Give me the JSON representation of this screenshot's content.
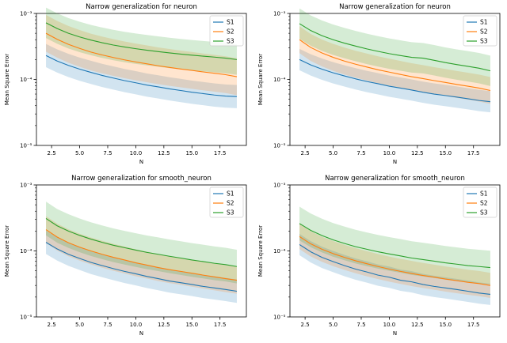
{
  "page": {
    "background": "#ffffff"
  },
  "axis": {
    "xlabel": "N",
    "ylabel": "Mean Square Error",
    "xlim": [
      1.15,
      19.85
    ],
    "ylim_log": [
      -5,
      -3
    ],
    "x_ticks": [
      2.5,
      5.0,
      7.5,
      10.0,
      12.5,
      15.0,
      17.5
    ],
    "x_tick_labels": [
      "2.5",
      "5.0",
      "7.5",
      "10.0",
      "12.5",
      "15.0",
      "17.5"
    ],
    "y_tick_exponents": [
      -5,
      -4,
      -3
    ],
    "y_tick_labels": [
      "10⁻⁵",
      "10⁻⁴",
      "10⁻³"
    ]
  },
  "legend": {
    "labels": [
      "S1",
      "S2",
      "S3"
    ]
  },
  "colors": {
    "s1": "#1f77b4",
    "s2": "#ff7f0e",
    "s3": "#2ca02c",
    "band_opacity": 0.2,
    "frame": "#000000",
    "legend_border": "#cccccc"
  },
  "chart_data": [
    {
      "type": "line",
      "title": "Narrow generalization for neuron",
      "xlabel": "N",
      "ylabel": "Mean Square Error",
      "yscale": "log",
      "ylim": [
        1e-05,
        0.001
      ],
      "x": [
        2,
        3,
        4,
        5,
        6,
        7,
        8,
        9,
        10,
        11,
        12,
        13,
        14,
        15,
        16,
        17,
        18,
        19
      ],
      "series": [
        {
          "name": "S1",
          "color": "#1f77b4",
          "band_factor": 1.5,
          "values": [
            0.00023,
            0.00019,
            0.000163,
            0.000143,
            0.000128,
            0.000115,
            0.000105,
            9.6e-05,
            8.9e-05,
            8.2e-05,
            7.7e-05,
            7.2e-05,
            6.8e-05,
            6.4e-05,
            6.1e-05,
            5.8e-05,
            5.6e-05,
            5.5e-05
          ]
        },
        {
          "name": "S2",
          "color": "#ff7f0e",
          "band_factor": 1.9,
          "values": [
            0.0005,
            0.000405,
            0.00034,
            0.000295,
            0.00026,
            0.000235,
            0.000215,
            0.000198,
            0.000184,
            0.000172,
            0.000161,
            0.000152,
            0.000144,
            0.000137,
            0.00013,
            0.000124,
            0.000118,
            0.00011
          ]
        },
        {
          "name": "S3",
          "color": "#2ca02c",
          "band_factor": 1.7,
          "values": [
            0.00072,
            0.00059,
            0.0005,
            0.00044,
            0.000395,
            0.00036,
            0.000332,
            0.00031,
            0.000292,
            0.000277,
            0.000264,
            0.000252,
            0.000242,
            0.000233,
            0.000225,
            0.000218,
            0.00021,
            0.0002
          ]
        }
      ]
    },
    {
      "type": "line",
      "title": "Narrow generalization for neuron",
      "xlabel": "N",
      "ylabel": "Mean Square Error",
      "yscale": "log",
      "ylim": [
        1e-05,
        0.001
      ],
      "x": [
        2,
        3,
        4,
        5,
        6,
        7,
        8,
        9,
        10,
        11,
        12,
        13,
        14,
        15,
        16,
        17,
        18,
        19
      ],
      "series": [
        {
          "name": "S1",
          "color": "#1f77b4",
          "band_factor": 1.45,
          "values": [
            0.0002,
            0.000166,
            0.000143,
            0.000126,
            0.000113,
            0.000102,
            9.3e-05,
            8.6e-05,
            7.9e-05,
            7.4e-05,
            6.9e-05,
            6.4e-05,
            6e-05,
            5.7e-05,
            5.4e-05,
            5.1e-05,
            4.8e-05,
            4.6e-05
          ]
        },
        {
          "name": "S2",
          "color": "#ff7f0e",
          "band_factor": 1.6,
          "values": [
            0.0004,
            0.000305,
            0.000252,
            0.000216,
            0.00019,
            0.00017,
            0.000154,
            0.00014,
            0.000129,
            0.000119,
            0.00011,
            0.000103,
            9.6e-05,
            9e-05,
            8.4e-05,
            7.9e-05,
            7.4e-05,
            6.8e-05
          ]
        },
        {
          "name": "S3",
          "color": "#2ca02c",
          "band_factor": 1.7,
          "values": [
            0.0007,
            0.00055,
            0.00046,
            0.0004,
            0.000355,
            0.00032,
            0.00029,
            0.000266,
            0.000246,
            0.00023,
            0.000216,
            0.00021,
            0.000195,
            0.00018,
            0.000168,
            0.000158,
            0.000148,
            0.000135
          ]
        }
      ]
    },
    {
      "type": "line",
      "title": "Narrow generalization for smooth_neuron",
      "xlabel": "N",
      "ylabel": "Mean Square Error",
      "yscale": "log",
      "ylim": [
        1e-05,
        0.001
      ],
      "x": [
        2,
        3,
        4,
        5,
        6,
        7,
        8,
        9,
        10,
        11,
        12,
        13,
        14,
        15,
        16,
        17,
        18,
        19
      ],
      "series": [
        {
          "name": "S1",
          "color": "#1f77b4",
          "band_factor": 1.5,
          "values": [
            0.000135,
            0.000107,
            8.9e-05,
            7.7e-05,
            6.7e-05,
            6e-05,
            5.4e-05,
            4.9e-05,
            4.5e-05,
            4.1e-05,
            3.8e-05,
            3.5e-05,
            3.3e-05,
            3.1e-05,
            2.9e-05,
            2.75e-05,
            2.6e-05,
            2.45e-05
          ]
        },
        {
          "name": "S2",
          "color": "#ff7f0e",
          "band_factor": 1.6,
          "values": [
            0.00021,
            0.000162,
            0.000133,
            0.000114,
            0.0001,
            8.9e-05,
            8e-05,
            7.3e-05,
            6.6e-05,
            6.1e-05,
            5.6e-05,
            5.2e-05,
            4.9e-05,
            4.6e-05,
            4.3e-05,
            4.05e-05,
            3.8e-05,
            3.6e-05
          ]
        },
        {
          "name": "S3",
          "color": "#2ca02c",
          "band_factor": 1.8,
          "values": [
            0.00031,
            0.00024,
            0.0002,
            0.000172,
            0.000151,
            0.000135,
            0.000122,
            0.000112,
            0.000103,
            9.5e-05,
            8.9e-05,
            8.3e-05,
            7.8e-05,
            7.3e-05,
            6.9e-05,
            6.5e-05,
            6.2e-05,
            5.8e-05
          ]
        }
      ]
    },
    {
      "type": "line",
      "title": "Narrow generalization for smooth_neuron",
      "xlabel": "N",
      "ylabel": "Mean Square Error",
      "yscale": "log",
      "ylim": [
        1e-05,
        0.001
      ],
      "x": [
        2,
        3,
        4,
        5,
        6,
        7,
        8,
        9,
        10,
        11,
        12,
        13,
        14,
        15,
        16,
        17,
        18,
        19
      ],
      "series": [
        {
          "name": "S1",
          "color": "#1f77b4",
          "band_factor": 1.45,
          "values": [
            0.000125,
            9.7e-05,
            8e-05,
            6.9e-05,
            6e-05,
            5.3e-05,
            4.8e-05,
            4.3e-05,
            4e-05,
            3.6e-05,
            3.4e-05,
            3.1e-05,
            2.9e-05,
            2.75e-05,
            2.6e-05,
            2.45e-05,
            2.3e-05,
            2.2e-05
          ]
        },
        {
          "name": "S2",
          "color": "#ff7f0e",
          "band_factor": 1.55,
          "values": [
            0.000165,
            0.000128,
            0.000106,
            9.1e-05,
            8e-05,
            7.1e-05,
            6.4e-05,
            5.8e-05,
            5.3e-05,
            4.9e-05,
            4.55e-05,
            4.25e-05,
            4e-05,
            3.75e-05,
            3.55e-05,
            3.35e-05,
            3.2e-05,
            3e-05
          ]
        },
        {
          "name": "S3",
          "color": "#2ca02c",
          "band_factor": 1.8,
          "values": [
            0.00026,
            0.000205,
            0.000171,
            0.000147,
            0.00013,
            0.000116,
            0.000106,
            9.7e-05,
            9e-05,
            8.4e-05,
            7.8e-05,
            7.4e-05,
            7e-05,
            6.6e-05,
            6.3e-05,
            6e-05,
            5.8e-05,
            5.6e-05
          ]
        }
      ]
    }
  ]
}
